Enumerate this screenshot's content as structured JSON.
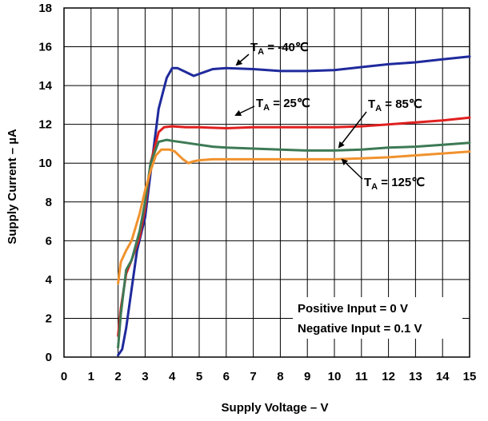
{
  "chart_data": {
    "type": "line",
    "xlabel": "Supply Voltage – V",
    "ylabel": "Supply Current – µA",
    "xlim": [
      0,
      15
    ],
    "ylim": [
      0,
      18
    ],
    "x_ticks": [
      "0",
      "1",
      "2",
      "3",
      "4",
      "5",
      "6",
      "7",
      "8",
      "9",
      "10",
      "11",
      "12",
      "13",
      "14",
      "15"
    ],
    "y_ticks": [
      "0",
      "2",
      "4",
      "6",
      "8",
      "10",
      "12",
      "14",
      "16",
      "18"
    ],
    "grid": true,
    "legend": "none",
    "series": [
      {
        "name": "T_A = -40°C",
        "label_prefix": "T",
        "label_sub": "A",
        "label_suffix": " = -40℃",
        "color": "#1f2a9c",
        "x": [
          2.0,
          2.15,
          2.3,
          2.5,
          2.7,
          3.0,
          3.2,
          3.5,
          3.8,
          4.0,
          4.2,
          4.5,
          4.8,
          5.0,
          5.5,
          6.0,
          7.0,
          8.0,
          9.0,
          10.0,
          11.0,
          12.0,
          13.0,
          14.0,
          15.0
        ],
        "y": [
          0.1,
          0.4,
          1.5,
          3.5,
          5.5,
          7.2,
          9.5,
          12.8,
          14.4,
          14.9,
          14.9,
          14.7,
          14.5,
          14.6,
          14.85,
          14.9,
          14.85,
          14.75,
          14.75,
          14.8,
          14.95,
          15.1,
          15.2,
          15.35,
          15.5
        ]
      },
      {
        "name": "T_A = 25°C",
        "label_prefix": "T",
        "label_sub": "A",
        "label_suffix": " = 25℃",
        "color": "#e0201f",
        "x": [
          2.0,
          2.1,
          2.3,
          2.5,
          2.8,
          3.0,
          3.2,
          3.5,
          3.7,
          4.0,
          4.5,
          5.0,
          6.0,
          7.0,
          8.0,
          9.0,
          10.0,
          11.0,
          12.0,
          13.0,
          14.0,
          15.0
        ],
        "y": [
          1.1,
          2.5,
          4.3,
          5.0,
          6.2,
          7.7,
          10.0,
          11.6,
          11.85,
          11.9,
          11.85,
          11.85,
          11.8,
          11.85,
          11.85,
          11.85,
          11.85,
          11.9,
          12.0,
          12.1,
          12.2,
          12.35
        ]
      },
      {
        "name": "T_A = 85°C",
        "label_prefix": "T",
        "label_sub": "A",
        "label_suffix": " = 85℃",
        "color": "#3d7a55",
        "x": [
          2.0,
          2.1,
          2.3,
          2.5,
          2.8,
          3.0,
          3.2,
          3.5,
          3.8,
          4.0,
          4.5,
          5.0,
          5.5,
          6.0,
          7.0,
          8.0,
          9.0,
          10.0,
          11.0,
          12.0,
          13.0,
          14.0,
          15.0
        ],
        "y": [
          0.5,
          2.2,
          4.5,
          5.0,
          6.5,
          8.0,
          10.0,
          11.1,
          11.2,
          11.15,
          11.05,
          10.95,
          10.85,
          10.8,
          10.75,
          10.7,
          10.65,
          10.65,
          10.7,
          10.8,
          10.85,
          10.95,
          11.05
        ]
      },
      {
        "name": "T_A = 125°C",
        "label_prefix": "T",
        "label_sub": "A",
        "label_suffix": " = 125℃",
        "color": "#f0922e",
        "x": [
          2.0,
          2.1,
          2.3,
          2.5,
          2.8,
          3.0,
          3.2,
          3.4,
          3.6,
          3.9,
          4.1,
          4.4,
          4.6,
          4.8,
          5.0,
          5.5,
          6.0,
          7.0,
          8.0,
          9.0,
          10.0,
          11.0,
          12.0,
          13.0,
          14.0,
          15.0
        ],
        "y": [
          3.8,
          4.9,
          5.5,
          6.0,
          7.4,
          8.6,
          9.6,
          10.4,
          10.7,
          10.7,
          10.6,
          10.2,
          10.0,
          10.1,
          10.15,
          10.2,
          10.2,
          10.2,
          10.2,
          10.2,
          10.2,
          10.25,
          10.3,
          10.4,
          10.5,
          10.6
        ]
      }
    ],
    "annotations": [
      {
        "text": "Positive Input = 0 V"
      },
      {
        "text": "Negative Input = 0.1 V"
      }
    ]
  }
}
